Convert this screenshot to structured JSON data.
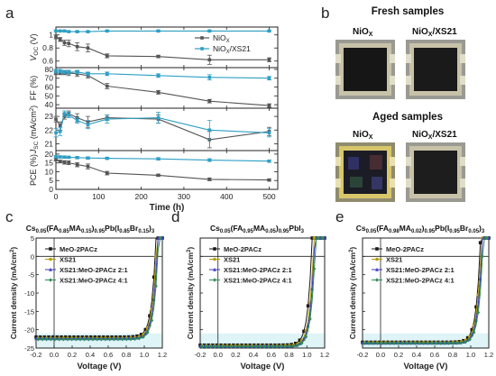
{
  "panel_labels": {
    "a": "a",
    "b": "b",
    "c": "c",
    "d": "d",
    "e": "e"
  },
  "photos": {
    "fresh_title": "Fresh samples",
    "aged_title": "Aged samples",
    "label_niox": "NiO",
    "label_niox_sub": "X",
    "label_xs21": "NiO",
    "label_xs21_sub": "X",
    "label_xs21_suffix": "/XS21"
  },
  "colors": {
    "niox": "#555555",
    "xs21": "#2e9fc4"
  },
  "chart_data": [
    {
      "type": "line",
      "panel": "a-voc",
      "ylabel": "VOC (V)",
      "ylabel_main": "V",
      "ylabel_sub": "OC",
      "ylabel_unit": " (V)",
      "yticks": [
        0.6,
        0.8,
        1.0
      ],
      "ylim": [
        0.5,
        1.12
      ],
      "xlim": [
        0,
        520
      ],
      "legend": [
        "NiOx",
        "NiOx/XS21"
      ],
      "legend_position": "right",
      "series": [
        {
          "name": "NiOx",
          "x": [
            0,
            10,
            20,
            30,
            50,
            75,
            120,
            240,
            360,
            500
          ],
          "y": [
            0.97,
            0.93,
            0.88,
            0.87,
            0.82,
            0.8,
            0.68,
            0.67,
            0.62,
            0.62
          ],
          "err": [
            0.03,
            0.03,
            0.04,
            0.05,
            0.06,
            0.06,
            0.03,
            0.02,
            0.07,
            0.03
          ]
        },
        {
          "name": "NiOx/XS21",
          "x": [
            0,
            10,
            20,
            30,
            50,
            75,
            120,
            240,
            360,
            500
          ],
          "y": [
            1.06,
            1.06,
            1.06,
            1.05,
            1.05,
            1.05,
            1.06,
            1.06,
            1.06,
            1.06
          ],
          "err": [
            0.01,
            0.01,
            0.01,
            0.01,
            0.01,
            0.01,
            0.01,
            0.01,
            0.01,
            0.01
          ]
        }
      ]
    },
    {
      "type": "line",
      "panel": "a-ff",
      "ylabel": "FF (%)",
      "yticks": [
        40,
        50,
        60,
        70,
        80
      ],
      "ylim": [
        36,
        82
      ],
      "xlim": [
        0,
        520
      ],
      "series": [
        {
          "name": "NiOx",
          "x": [
            0,
            10,
            20,
            30,
            50,
            75,
            120,
            240,
            360,
            500
          ],
          "y": [
            76,
            76,
            76,
            76,
            75,
            73,
            61,
            54,
            44,
            39
          ],
          "err": [
            2,
            2,
            2,
            3,
            3,
            3,
            3,
            2,
            2,
            2
          ]
        },
        {
          "name": "NiOx/XS21",
          "x": [
            0,
            10,
            20,
            30,
            50,
            75,
            120,
            240,
            360,
            500
          ],
          "y": [
            78,
            78,
            77,
            77,
            77,
            75,
            75,
            73,
            71,
            70
          ],
          "err": [
            2,
            2,
            2,
            2,
            2,
            2,
            2,
            2,
            3,
            2
          ]
        }
      ]
    },
    {
      "type": "line",
      "panel": "a-jsc",
      "ylabel": "JSC (mA/cm2)",
      "ylabel_main": "J",
      "ylabel_sub": "SC",
      "ylabel_unit": " (mA/cm",
      "ylabel_sup": "2",
      "ylabel_close": ")",
      "yticks": [
        21,
        22,
        23
      ],
      "ylim": [
        20.5,
        23.6
      ],
      "xlim": [
        0,
        520
      ],
      "series": [
        {
          "name": "NiOx",
          "x": [
            0,
            10,
            20,
            30,
            50,
            75,
            120,
            240,
            360,
            500
          ],
          "y": [
            22.8,
            22.3,
            23.0,
            23.2,
            22.9,
            22.6,
            22.9,
            22.8,
            21.3,
            21.9
          ],
          "err": [
            0.2,
            0.3,
            0.2,
            0.2,
            0.3,
            0.4,
            0.2,
            0.3,
            0.6,
            0.3
          ]
        },
        {
          "name": "NiOx/XS21",
          "x": [
            0,
            10,
            20,
            30,
            50,
            75,
            120,
            240,
            360,
            500
          ],
          "y": [
            21.8,
            21.9,
            23.2,
            23.1,
            22.7,
            22.4,
            22.8,
            22.9,
            22.0,
            21.8
          ],
          "err": [
            0.3,
            0.3,
            0.2,
            0.2,
            0.2,
            0.3,
            0.3,
            0.4,
            0.7,
            0.3
          ]
        }
      ]
    },
    {
      "type": "line",
      "panel": "a-pce",
      "ylabel": "PCE (%)",
      "xlabel": "Time (h)",
      "yticks": [
        0,
        5,
        10,
        15,
        20
      ],
      "ylim": [
        0,
        22
      ],
      "xlim": [
        0,
        520
      ],
      "xticks": [
        0,
        100,
        200,
        300,
        400,
        500
      ],
      "series": [
        {
          "name": "NiOx",
          "x": [
            0,
            10,
            20,
            30,
            50,
            75,
            120,
            240,
            360,
            500
          ],
          "y": [
            16.9,
            15.8,
            15.3,
            15.1,
            14.0,
            13.0,
            9.2,
            8.0,
            5.7,
            5.3
          ],
          "err": [
            0.8,
            0.8,
            1.0,
            1.1,
            1.2,
            1.4,
            1.0,
            0.6,
            0.8,
            0.6
          ]
        },
        {
          "name": "NiOx/XS21",
          "x": [
            0,
            10,
            20,
            30,
            50,
            75,
            120,
            240,
            360,
            500
          ],
          "y": [
            18.5,
            18.4,
            18.3,
            18.2,
            18.0,
            17.8,
            17.6,
            17.3,
            16.6,
            16.0
          ],
          "err": [
            0.6,
            0.6,
            0.6,
            0.6,
            0.6,
            0.6,
            0.6,
            0.7,
            0.8,
            0.6
          ]
        }
      ]
    },
    {
      "type": "line",
      "panel": "c",
      "title_parts": [
        [
          "t",
          "Cs"
        ],
        [
          "s",
          "0.05"
        ],
        [
          "t",
          "(FA"
        ],
        [
          "s",
          "0.85"
        ],
        [
          "t",
          "MA"
        ],
        [
          "s",
          "0.15"
        ],
        [
          "t",
          ")"
        ],
        [
          "s",
          "0.95"
        ],
        [
          "t",
          "Pb(I"
        ],
        [
          "s",
          "0.85"
        ],
        [
          "t",
          "Br"
        ],
        [
          "s",
          "0.15"
        ],
        [
          "t",
          ")"
        ],
        [
          "s",
          "3"
        ]
      ],
      "xlabel": "Voltage (V)",
      "ylabel": "Current density (mA/cm2)",
      "xlim": [
        -0.2,
        1.2
      ],
      "ylim": [
        -25,
        5
      ],
      "xticks": [
        -0.2,
        0.0,
        0.2,
        0.4,
        0.6,
        0.8,
        1.0,
        1.2
      ],
      "xtick_labels": [
        "-0.2",
        "0.0",
        "0.2",
        "0.4",
        "0.6",
        "0.8",
        "1.0",
        "1.2"
      ],
      "yticks": [
        -25,
        -20,
        -15,
        -10,
        -5,
        0,
        5
      ],
      "series": [
        {
          "name": "MeO-2PACz",
          "jsc": 22.0,
          "voc": 1.12,
          "color": "#1a1a1a",
          "marker": "square"
        },
        {
          "name": "XS21",
          "jsc": 22.3,
          "voc": 1.13,
          "color": "#b5a000",
          "marker": "circle"
        },
        {
          "name": "XS21:MeO-2PACz 2:1",
          "jsc": 22.4,
          "voc": 1.14,
          "color": "#3b3bbf",
          "marker": "triangle"
        },
        {
          "name": "XS21:MeO-2PACz 4:1",
          "jsc": 22.6,
          "voc": 1.15,
          "color": "#2e8b57",
          "marker": "diamond"
        }
      ],
      "legend_position": "upper-left"
    },
    {
      "type": "line",
      "panel": "d",
      "title_parts": [
        [
          "t",
          "Cs"
        ],
        [
          "s",
          "0.05"
        ],
        [
          "t",
          "(FA"
        ],
        [
          "s",
          "0.95"
        ],
        [
          "t",
          "MA"
        ],
        [
          "s",
          "0.05"
        ],
        [
          "t",
          ")"
        ],
        [
          "s",
          "0.95"
        ],
        [
          "t",
          "PbI"
        ],
        [
          "s",
          "3"
        ]
      ],
      "xlabel": "Voltage (V)",
      "ylabel": "Current density (mA/cm2)",
      "xlim": [
        -0.2,
        1.2
      ],
      "ylim": [
        -25,
        5
      ],
      "xticks": [
        -0.2,
        0.0,
        0.2,
        0.4,
        0.6,
        0.8,
        1.0,
        1.2
      ],
      "xtick_labels": [
        "-0.2",
        "0.0",
        "0.2",
        "0.4",
        "0.6",
        "0.8",
        "1.0",
        "1.2"
      ],
      "yticks": [
        -25,
        -20,
        -15,
        -10,
        -5,
        0,
        5
      ],
      "series": [
        {
          "name": "MeO-2PACz",
          "jsc": 24.2,
          "voc": 1.05,
          "color": "#1a1a1a",
          "marker": "square"
        },
        {
          "name": "XS21",
          "jsc": 24.4,
          "voc": 1.07,
          "color": "#b5a000",
          "marker": "circle"
        },
        {
          "name": "XS21:MeO-2PACz 2:1",
          "jsc": 24.5,
          "voc": 1.08,
          "color": "#3b3bbf",
          "marker": "triangle"
        },
        {
          "name": "XS21:MeO-2PACz 4:1",
          "jsc": 24.6,
          "voc": 1.09,
          "color": "#2e8b57",
          "marker": "diamond"
        }
      ],
      "legend_position": "upper-left"
    },
    {
      "type": "line",
      "panel": "e",
      "title_parts": [
        [
          "t",
          "Cs"
        ],
        [
          "s",
          "0.05"
        ],
        [
          "t",
          "(FA"
        ],
        [
          "s",
          "0.98"
        ],
        [
          "t",
          "MA"
        ],
        [
          "s",
          "0.02"
        ],
        [
          "t",
          ")"
        ],
        [
          "s",
          "0.95"
        ],
        [
          "t",
          "Pb(I"
        ],
        [
          "s",
          "0.95"
        ],
        [
          "t",
          "Br"
        ],
        [
          "s",
          "0.05"
        ],
        [
          "t",
          ")"
        ],
        [
          "s",
          "3"
        ]
      ],
      "xlabel": "Voltage (V)",
      "ylabel": "Current density (mA/cm2)",
      "xlim": [
        -0.2,
        1.2
      ],
      "ylim": [
        -25,
        5
      ],
      "xticks": [
        -0.2,
        0.0,
        0.2,
        0.4,
        0.6,
        0.8,
        1.0,
        1.2
      ],
      "xtick_labels": [
        "-0.2",
        "0.0",
        "0.2",
        "0.4",
        "0.6",
        "0.8",
        "1.0",
        "1.2"
      ],
      "yticks": [
        -25,
        -20,
        -15,
        -10,
        -5,
        0,
        5
      ],
      "series": [
        {
          "name": "MeO-2PACz",
          "jsc": 23.4,
          "voc": 1.1,
          "color": "#1a1a1a",
          "marker": "square"
        },
        {
          "name": "XS21",
          "jsc": 23.5,
          "voc": 1.11,
          "color": "#b5a000",
          "marker": "circle"
        },
        {
          "name": "XS21:MeO-2PACz 2:1",
          "jsc": 23.6,
          "voc": 1.12,
          "color": "#3b3bbf",
          "marker": "triangle"
        },
        {
          "name": "XS21:MeO-2PACz 4:1",
          "jsc": 23.7,
          "voc": 1.13,
          "color": "#2e8b57",
          "marker": "diamond"
        }
      ],
      "legend_position": "upper-left"
    }
  ]
}
